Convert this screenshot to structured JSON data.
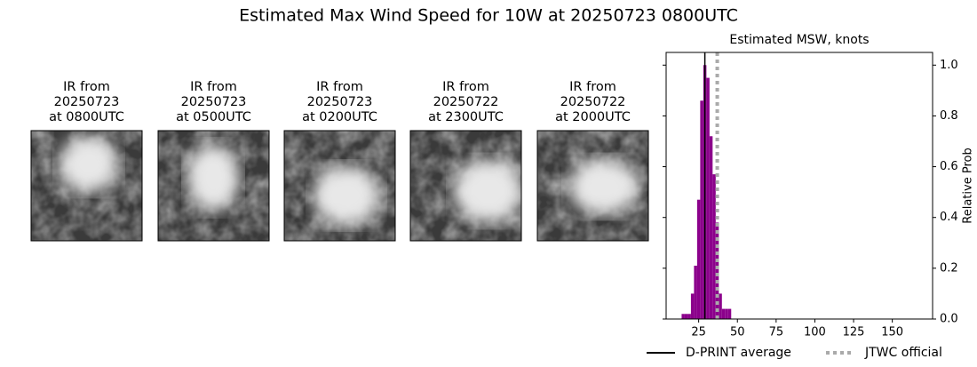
{
  "title": "Estimated Max Wind Speed for 10W at 20250723 0800UTC",
  "panels": [
    {
      "title": [
        "IR from",
        "20250723",
        "at 0800UTC"
      ]
    },
    {
      "title": [
        "IR from",
        "20250723",
        "at 0500UTC"
      ]
    },
    {
      "title": [
        "IR from",
        "20250723",
        "at 0200UTC"
      ]
    },
    {
      "title": [
        "IR from",
        "20250722",
        "at 2300UTC"
      ]
    },
    {
      "title": [
        "IR from",
        "20250722",
        "at 2000UTC"
      ]
    }
  ],
  "chart_data": {
    "type": "histogram",
    "title": "Estimated MSW, knots",
    "ylabel": "Relative Prob",
    "bins": [
      14,
      16,
      18,
      20,
      22,
      24,
      26,
      28,
      30,
      32,
      34,
      36,
      38,
      40,
      42,
      44,
      46
    ],
    "values": [
      0.02,
      0.02,
      0.02,
      0.1,
      0.21,
      0.47,
      0.86,
      1.0,
      0.95,
      0.72,
      0.57,
      0.38,
      0.1,
      0.04,
      0.04,
      0.04
    ],
    "color": "#8b008b",
    "xlim": [
      4,
      176
    ],
    "xticks": [
      25,
      50,
      75,
      100,
      125,
      150
    ],
    "ylim": [
      0,
      1.05
    ],
    "yticks": [
      {
        "value": 0,
        "label": "0.0"
      },
      0.2,
      0.4,
      0.6,
      0.8,
      {
        "value": 1,
        "label": "1.0"
      }
    ],
    "lines": [
      {
        "name": "D-PRINT average",
        "value": 29,
        "color": "#000000",
        "style": "solid"
      },
      {
        "name": "JTWC official",
        "value": 37,
        "color": "#aaaaaa",
        "style": "dotted"
      }
    ]
  }
}
